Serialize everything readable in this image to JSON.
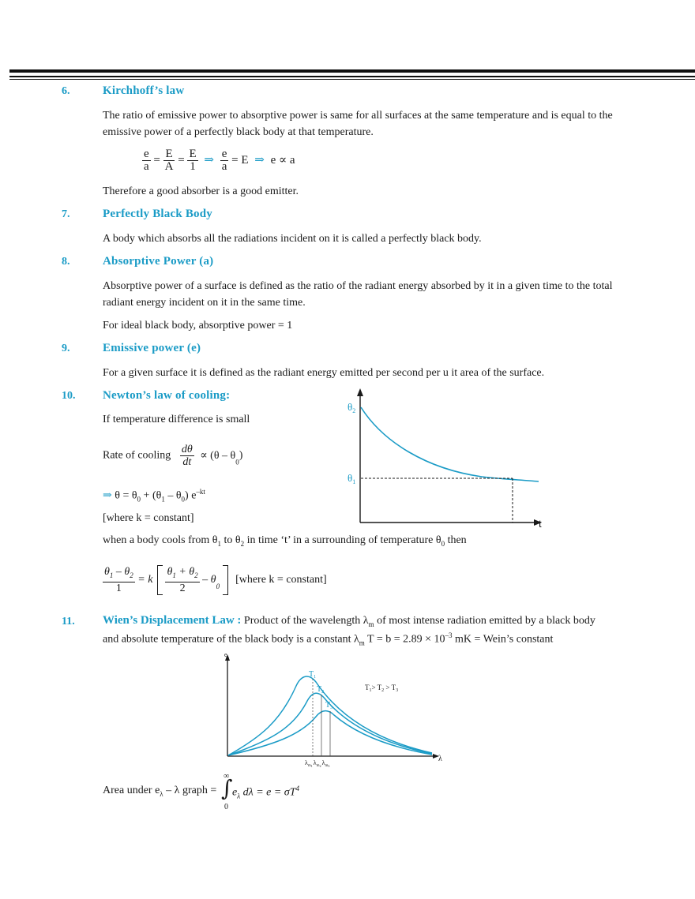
{
  "s6": {
    "num": "6.",
    "heading": "Kirchhoff’s law",
    "p1": "The ratio of emissive power to absorptive power is same for all surfaces at the same temperature and is equal to the",
    "p2": "emissive power of a perfectly black body at that temperature.",
    "eq": {
      "e": "e",
      "a": "a",
      "E": "E",
      "A": "A",
      "one": "1",
      "eq": "=",
      "arrow": "⇒",
      "eqE": "= E",
      "prop": "e ∝ a"
    },
    "p3": "Therefore a good absorber is a good emitter."
  },
  "s7": {
    "num": "7.",
    "heading": "Perfectly  Black  Body",
    "p1": "A body which absorbs all the radiations incident on it is called a perfectly black body."
  },
  "s8": {
    "num": "8.",
    "heading": "Absorptive  Power  (a)",
    "p1": "Absorptive power of a surface is defined as the ratio of the radiant energy absorbed by it in a given time to the total",
    "p2": "radiant energy incident on it in the same time.",
    "p3": "For ideal black body, absorptive power = 1"
  },
  "s9": {
    "num": "9.",
    "heading": "Emissive  power  (e)",
    "p1": "For a given surface it is defined as the radiant energy emitted per second per u it area of the surface."
  },
  "s10": {
    "num": "10.",
    "heading": "Newton’s  law  of  cooling:",
    "p1": "If temperature difference is small",
    "rate_label": "Rate of cooling",
    "dtheta": "dθ",
    "dt": "dt",
    "prop": "∝ (θ – θ",
    "sub0": "0",
    "close": ")",
    "arrow": "⇒",
    "sol_a": " θ = θ",
    "sol_b": " + (θ",
    "sol_c": " – θ",
    "sol_d": ") e",
    "sub1": "1",
    "kt": "–kt",
    "where": "[where k = constant]",
    "cools_a": "when a body cools from θ",
    "cools_b": " to θ",
    "cools_c": " in time ‘t’ in a surrounding of temperature θ",
    "cools_d": " then",
    "sub2": "2",
    "f_num": "θ",
    "f_minus": " – θ",
    "f_den": "1",
    "eqk": "= k",
    "f2_plus": " + θ",
    "f2_den": "2",
    "minus_theta": "– θ",
    "where2": "[where k = constant]",
    "graph": {
      "theta2": "θ",
      "theta1": "θ",
      "s2": "2",
      "s1": "1",
      "t": "t"
    }
  },
  "s11": {
    "num": "11.",
    "heading": "Wien’s Displacement Law :",
    "p1a": " Product of the wavelength λ",
    "sub_m": "m",
    "p1b": " of most intense radiation emitted by a black body",
    "p2a": "and absolute temperature of the black body is a constant λ",
    "p2b": " T = b = 2.89 × 10",
    "exp": "–3",
    "p2c": " mK = Wein’s constant",
    "graph": {
      "ey": "e",
      "lam_sub": "λ",
      "T": "T",
      "t1": "1",
      "t2": "2",
      "t3": "3",
      "rel_a": "T",
      "rel_b": "> T",
      "rel_c": " > T",
      "lambda": "λ",
      "lm": "λ",
      "m": "m"
    },
    "area_a": "Area under e",
    "area_b": " – λ graph =",
    "inf": "∞",
    "zero": "0",
    "integral": "∫",
    "integrand": "e",
    "lam": "λ",
    "rest": " dλ = e = σT",
    "four": "4"
  }
}
